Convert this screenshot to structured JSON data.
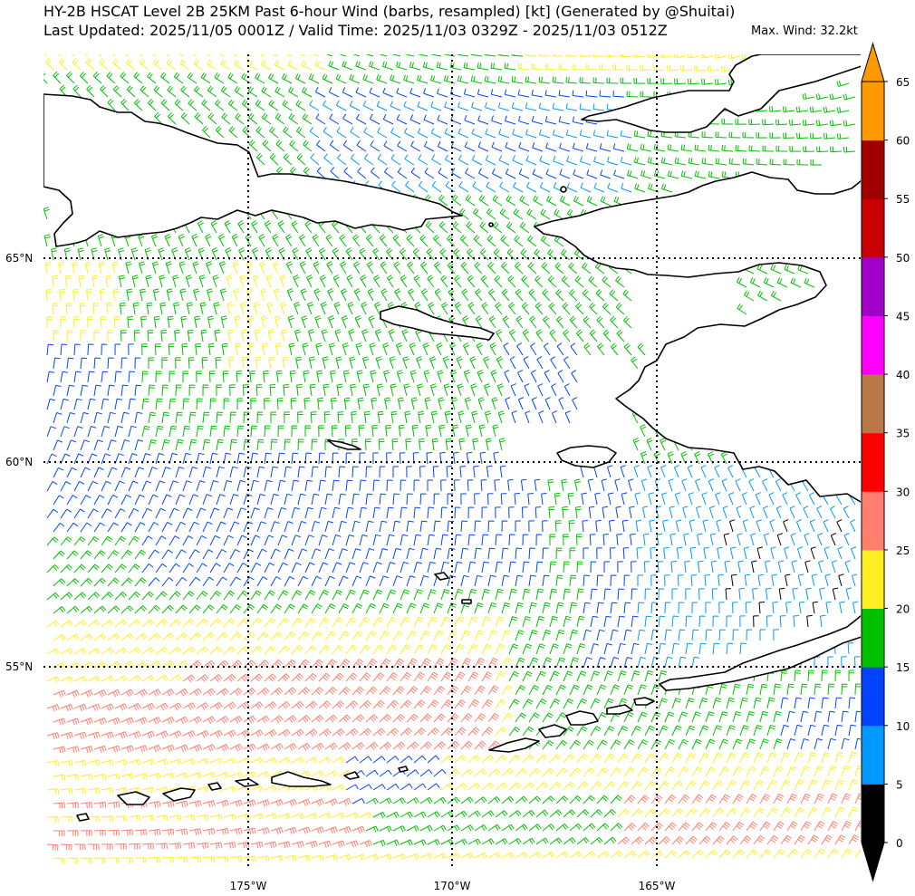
{
  "header": {
    "title_line1": "HY-2B HSCAT Level 2B 25KM Past 6-hour Wind (barbs, resampled) [kt] (Generated by @Shuitai)",
    "title_line2": "Last Updated: 2025/11/05 0001Z / Valid Time: 2025/11/03 0329Z - 2025/11/03 0512Z",
    "max_wind": "Max. Wind: 32.2kt"
  },
  "map": {
    "lat_labels": [
      "65°N",
      "60°N",
      "55°N"
    ],
    "lon_labels": [
      "175°W",
      "170°W",
      "165°W"
    ],
    "gridlines": "dotted",
    "wind_regions": [
      {
        "region": "north-bering-strait",
        "speed_class": "10-15"
      },
      {
        "region": "central-bering",
        "speed_class": "15-20"
      },
      {
        "region": "southwest",
        "speed_class": "25-30"
      },
      {
        "region": "southeast-bristol-bay",
        "speed_class": "5-10"
      }
    ]
  },
  "colorbar": {
    "ticks": [
      "0",
      "5",
      "10",
      "15",
      "20",
      "25",
      "30",
      "35",
      "40",
      "45",
      "50",
      "55",
      "60",
      "65"
    ],
    "colors": [
      "#000000",
      "#0099ff",
      "#0044ff",
      "#00c000",
      "#ffee22",
      "#ff7f6f",
      "#ff0000",
      "#b87848",
      "#ff00ff",
      "#a000c8",
      "#c80000",
      "#a00000",
      "#ff9900"
    ],
    "extend": "both"
  }
}
